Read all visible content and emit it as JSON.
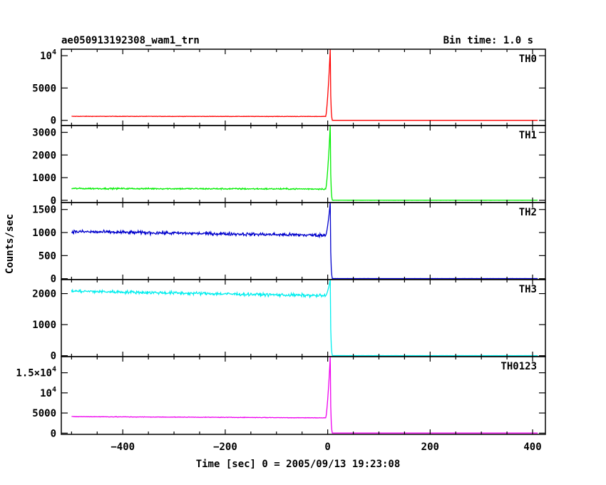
{
  "header": {
    "title": "ae050913192308_wam1_trn",
    "bin_time": "Bin time: 1.0 s"
  },
  "chart_data": {
    "type": "line",
    "xlabel": "Time [sec] 0 = 2005/09/13 19:23:08",
    "ylabel": "Counts/sec",
    "xlim": [
      -520,
      425
    ],
    "xticks": [
      -400,
      -200,
      0,
      200,
      400
    ],
    "xtick_labels": [
      "−400",
      "−200",
      "0",
      "200",
      "400"
    ],
    "panels": [
      {
        "name": "TH0",
        "color": "#ff0000",
        "ylim": [
          -800,
          11000
        ],
        "yticks": [
          0,
          5000,
          10000
        ],
        "ytick_labels": [
          {
            "base": "0"
          },
          {
            "base": "5000"
          },
          {
            "base": "10",
            "exp": "4"
          }
        ],
        "baseline_start": 620,
        "baseline_end": 600,
        "noise": 30,
        "peak": 11000,
        "post": 5
      },
      {
        "name": "TH1",
        "color": "#00ee00",
        "ylim": [
          -100,
          3300
        ],
        "yticks": [
          0,
          1000,
          2000,
          3000
        ],
        "ytick_labels": [
          {
            "base": "0"
          },
          {
            "base": "1000"
          },
          {
            "base": "2000"
          },
          {
            "base": "3000"
          }
        ],
        "baseline_start": 520,
        "baseline_end": 500,
        "noise": 30,
        "peak": 3300,
        "post": 5
      },
      {
        "name": "TH2",
        "color": "#0000cc",
        "ylim": [
          -20,
          1650
        ],
        "yticks": [
          0,
          500,
          1000,
          1500
        ],
        "ytick_labels": [
          {
            "base": "0"
          },
          {
            "base": "500"
          },
          {
            "base": "1000"
          },
          {
            "base": "1500"
          }
        ],
        "baseline_start": 1020,
        "baseline_end": 940,
        "noise": 35,
        "peak": 1650,
        "post": 3
      },
      {
        "name": "TH3",
        "color": "#00eeee",
        "ylim": [
          -30,
          2450
        ],
        "yticks": [
          0,
          1000,
          2000
        ],
        "ytick_labels": [
          {
            "base": "0"
          },
          {
            "base": "1000"
          },
          {
            "base": "2000"
          }
        ],
        "baseline_start": 2080,
        "baseline_end": 1930,
        "noise": 50,
        "peak": 2450,
        "post": 3
      },
      {
        "name": "TH0123",
        "color": "#ee00ee",
        "ylim": [
          -300,
          19000
        ],
        "yticks": [
          0,
          5000,
          10000,
          15000
        ],
        "ytick_labels": [
          {
            "base": "0"
          },
          {
            "base": "5000"
          },
          {
            "base": "10",
            "exp": "4"
          },
          {
            "base": "1.5×10",
            "exp": "4"
          }
        ],
        "baseline_start": 4100,
        "baseline_end": 3800,
        "noise": 60,
        "peak": 19000,
        "post": 10
      }
    ]
  }
}
